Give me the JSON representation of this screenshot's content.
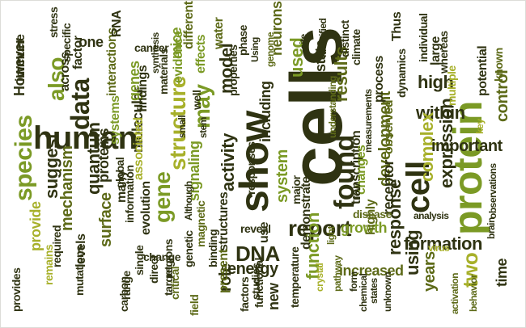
{
  "colors": {
    "dark": "#2f3312",
    "olive": "#5d6a18",
    "green": "#7b9a25",
    "gold": "#a7b02a",
    "yellow": "#c6bd3a"
  },
  "words": [
    "cells",
    "show",
    "human",
    "protein",
    "cell",
    "found",
    "species",
    "data",
    "quantum",
    "structure",
    "may",
    "report",
    "expression",
    "high",
    "also",
    "gene",
    "activity",
    "using",
    "suggest",
    "within",
    "complex",
    "two",
    "used",
    "results",
    "development",
    "important",
    "system",
    "DNA",
    "including",
    "response",
    "model",
    "energy",
    "function",
    "surface",
    "role",
    "mechanism",
    "formation",
    "proteins",
    "growth",
    "increased",
    "observed",
    "years",
    "molecular",
    "signaling",
    "transcription",
    "control",
    "state",
    "receptor",
    "changes",
    "However",
    "evidence",
    "genes",
    "neurons",
    "one",
    "mice",
    "new",
    "water",
    "associated",
    "process",
    "levels",
    "different",
    "provide",
    "properties",
    "structures",
    "time",
    "potential",
    "demonstrate",
    "highly",
    "many",
    "use",
    "major",
    "present",
    "distinct",
    "known",
    "large",
    "evolution",
    "information",
    "interactions",
    "systems",
    "findings",
    "materials",
    "effects",
    "Thus",
    "climate",
    "across",
    "factor",
    "immune",
    "cancer",
    "RNA",
    "stress",
    "specific",
    "phase",
    "genome",
    "responses",
    "individual",
    "whereas",
    "multiple",
    "dynamics",
    "studies",
    "genetic",
    "magnetic",
    "binding",
    "well",
    "stem",
    "small",
    "direct",
    "target",
    "global",
    "single",
    "change",
    "range",
    "carbon",
    "mutations",
    "remains",
    "required",
    "provides",
    "critical",
    "regions",
    "field",
    "factors",
    "functional",
    "temperature",
    "light",
    "pathway",
    "crystal",
    "reveal",
    "form",
    "low",
    "disease",
    "analysis",
    "virus",
    "brain",
    "observations",
    "behavior",
    "activation",
    "unknown",
    "states",
    "chemical",
    "site",
    "identified",
    "measurements",
    "synthesis",
    "Although",
    "understanding",
    "Using",
    "key"
  ]
}
